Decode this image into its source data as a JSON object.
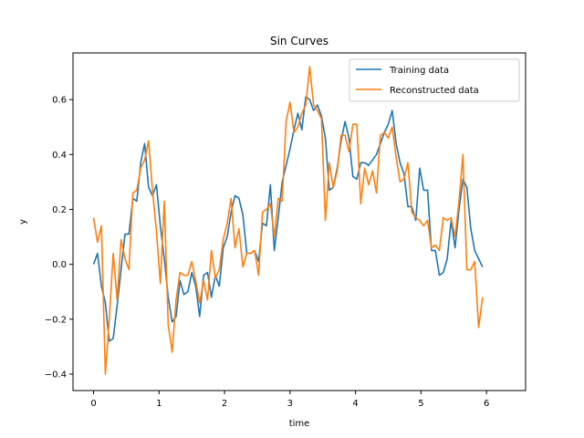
{
  "chart_data": {
    "type": "line",
    "title": "Sin Curves",
    "xlabel": "time",
    "ylabel": "y",
    "xlim": [
      -0.314,
      6.597
    ],
    "ylim": [
      -0.46,
      0.77
    ],
    "xticks": [
      0,
      1,
      2,
      3,
      4,
      5,
      6
    ],
    "yticks": [
      -0.4,
      -0.2,
      0.0,
      0.2,
      0.4,
      0.6
    ],
    "xtick_labels": [
      "0",
      "1",
      "2",
      "3",
      "4",
      "5",
      "6"
    ],
    "ytick_labels": [
      "−0.4",
      "−0.2",
      "0.0",
      "0.2",
      "0.4",
      "0.6"
    ],
    "grid": false,
    "legend_position": "top-right",
    "series": [
      {
        "name": "Training data",
        "color": "#1f77b4",
        "points": [
          [
            0.0,
            0.0
          ],
          [
            0.06,
            0.04
          ],
          [
            0.12,
            -0.08
          ],
          [
            0.18,
            -0.14
          ],
          [
            0.24,
            -0.28
          ],
          [
            0.3,
            -0.27
          ],
          [
            0.36,
            -0.15
          ],
          [
            0.42,
            -0.02
          ],
          [
            0.48,
            0.11
          ],
          [
            0.54,
            0.11
          ],
          [
            0.6,
            0.24
          ],
          [
            0.66,
            0.23
          ],
          [
            0.72,
            0.37
          ],
          [
            0.78,
            0.44
          ],
          [
            0.84,
            0.28
          ],
          [
            0.9,
            0.25
          ],
          [
            0.96,
            0.29
          ],
          [
            1.02,
            0.14
          ],
          [
            1.08,
            0.02
          ],
          [
            1.14,
            -0.12
          ],
          [
            1.2,
            -0.21
          ],
          [
            1.26,
            -0.19
          ],
          [
            1.32,
            -0.06
          ],
          [
            1.38,
            -0.11
          ],
          [
            1.44,
            -0.1
          ],
          [
            1.5,
            -0.03
          ],
          [
            1.56,
            -0.08
          ],
          [
            1.62,
            -0.19
          ],
          [
            1.68,
            -0.04
          ],
          [
            1.74,
            -0.03
          ],
          [
            1.8,
            -0.12
          ],
          [
            1.86,
            -0.04
          ],
          [
            1.92,
            -0.08
          ],
          [
            1.98,
            0.06
          ],
          [
            2.04,
            0.1
          ],
          [
            2.1,
            0.19
          ],
          [
            2.16,
            0.25
          ],
          [
            2.22,
            0.24
          ],
          [
            2.28,
            0.18
          ],
          [
            2.34,
            0.04
          ],
          [
            2.4,
            0.04
          ],
          [
            2.46,
            0.05
          ],
          [
            2.52,
            0.01
          ],
          [
            2.58,
            0.15
          ],
          [
            2.64,
            0.14
          ],
          [
            2.7,
            0.29
          ],
          [
            2.76,
            0.05
          ],
          [
            2.82,
            0.17
          ],
          [
            2.88,
            0.3
          ],
          [
            2.94,
            0.36
          ],
          [
            3.0,
            0.42
          ],
          [
            3.06,
            0.49
          ],
          [
            3.12,
            0.55
          ],
          [
            3.18,
            0.49
          ],
          [
            3.24,
            0.61
          ],
          [
            3.3,
            0.6
          ],
          [
            3.36,
            0.56
          ],
          [
            3.42,
            0.58
          ],
          [
            3.48,
            0.54
          ],
          [
            3.54,
            0.46
          ],
          [
            3.6,
            0.27
          ],
          [
            3.66,
            0.28
          ],
          [
            3.72,
            0.35
          ],
          [
            3.78,
            0.45
          ],
          [
            3.84,
            0.52
          ],
          [
            3.9,
            0.46
          ],
          [
            3.96,
            0.32
          ],
          [
            4.02,
            0.31
          ],
          [
            4.08,
            0.37
          ],
          [
            4.14,
            0.37
          ],
          [
            4.2,
            0.36
          ],
          [
            4.26,
            0.38
          ],
          [
            4.32,
            0.4
          ],
          [
            4.38,
            0.44
          ],
          [
            4.44,
            0.48
          ],
          [
            4.5,
            0.51
          ],
          [
            4.56,
            0.56
          ],
          [
            4.62,
            0.44
          ],
          [
            4.68,
            0.37
          ],
          [
            4.74,
            0.33
          ],
          [
            4.8,
            0.21
          ],
          [
            4.86,
            0.21
          ],
          [
            4.92,
            0.16
          ],
          [
            4.98,
            0.35
          ],
          [
            5.04,
            0.27
          ],
          [
            5.1,
            0.27
          ],
          [
            5.16,
            0.05
          ],
          [
            5.22,
            0.05
          ],
          [
            5.28,
            -0.04
          ],
          [
            5.34,
            -0.03
          ],
          [
            5.4,
            0.02
          ],
          [
            5.46,
            0.16
          ],
          [
            5.52,
            0.06
          ],
          [
            5.58,
            0.2
          ],
          [
            5.64,
            0.31
          ],
          [
            5.7,
            0.28
          ],
          [
            5.76,
            0.13
          ],
          [
            5.82,
            0.05
          ],
          [
            5.88,
            0.02
          ],
          [
            5.94,
            -0.01
          ]
        ]
      },
      {
        "name": "Reconstructed data",
        "color": "#ff7f0e",
        "points": [
          [
            0.0,
            0.17
          ],
          [
            0.06,
            0.08
          ],
          [
            0.12,
            0.14
          ],
          [
            0.18,
            -0.4
          ],
          [
            0.24,
            -0.2
          ],
          [
            0.3,
            0.04
          ],
          [
            0.36,
            -0.13
          ],
          [
            0.42,
            0.09
          ],
          [
            0.48,
            0.02
          ],
          [
            0.54,
            -0.02
          ],
          [
            0.6,
            0.26
          ],
          [
            0.66,
            0.27
          ],
          [
            0.72,
            0.35
          ],
          [
            0.78,
            0.38
          ],
          [
            0.84,
            0.45
          ],
          [
            0.9,
            0.27
          ],
          [
            0.96,
            0.12
          ],
          [
            1.02,
            -0.07
          ],
          [
            1.08,
            0.23
          ],
          [
            1.14,
            -0.22
          ],
          [
            1.2,
            -0.32
          ],
          [
            1.26,
            -0.13
          ],
          [
            1.32,
            -0.03
          ],
          [
            1.38,
            -0.04
          ],
          [
            1.44,
            -0.04
          ],
          [
            1.5,
            0.01
          ],
          [
            1.56,
            -0.06
          ],
          [
            1.62,
            -0.14
          ],
          [
            1.68,
            -0.06
          ],
          [
            1.74,
            -0.13
          ],
          [
            1.8,
            0.05
          ],
          [
            1.86,
            -0.05
          ],
          [
            1.92,
            -0.02
          ],
          [
            1.98,
            0.09
          ],
          [
            2.04,
            0.15
          ],
          [
            2.1,
            0.24
          ],
          [
            2.16,
            0.06
          ],
          [
            2.22,
            0.13
          ],
          [
            2.28,
            -0.01
          ],
          [
            2.34,
            0.04
          ],
          [
            2.4,
            0.04
          ],
          [
            2.46,
            0.05
          ],
          [
            2.52,
            -0.04
          ],
          [
            2.58,
            0.19
          ],
          [
            2.64,
            0.2
          ],
          [
            2.7,
            0.22
          ],
          [
            2.76,
            0.1
          ],
          [
            2.82,
            0.24
          ],
          [
            2.88,
            0.23
          ],
          [
            2.94,
            0.52
          ],
          [
            3.0,
            0.59
          ],
          [
            3.06,
            0.48
          ],
          [
            3.12,
            0.5
          ],
          [
            3.18,
            0.55
          ],
          [
            3.24,
            0.58
          ],
          [
            3.3,
            0.72
          ],
          [
            3.36,
            0.58
          ],
          [
            3.42,
            0.56
          ],
          [
            3.48,
            0.53
          ],
          [
            3.54,
            0.16
          ],
          [
            3.6,
            0.37
          ],
          [
            3.66,
            0.28
          ],
          [
            3.72,
            0.34
          ],
          [
            3.78,
            0.47
          ],
          [
            3.84,
            0.47
          ],
          [
            3.9,
            0.41
          ],
          [
            3.96,
            0.51
          ],
          [
            4.02,
            0.51
          ],
          [
            4.08,
            0.22
          ],
          [
            4.14,
            0.35
          ],
          [
            4.2,
            0.29
          ],
          [
            4.26,
            0.34
          ],
          [
            4.32,
            0.26
          ],
          [
            4.38,
            0.47
          ],
          [
            4.44,
            0.48
          ],
          [
            4.5,
            0.46
          ],
          [
            4.56,
            0.5
          ],
          [
            4.62,
            0.39
          ],
          [
            4.68,
            0.3
          ],
          [
            4.74,
            0.31
          ],
          [
            4.8,
            0.37
          ],
          [
            4.86,
            0.19
          ],
          [
            4.92,
            0.17
          ],
          [
            4.98,
            0.16
          ],
          [
            5.04,
            0.14
          ],
          [
            5.1,
            0.16
          ],
          [
            5.16,
            0.06
          ],
          [
            5.22,
            0.07
          ],
          [
            5.28,
            0.05
          ],
          [
            5.34,
            0.17
          ],
          [
            5.4,
            0.16
          ],
          [
            5.46,
            0.17
          ],
          [
            5.52,
            0.1
          ],
          [
            5.58,
            0.23
          ],
          [
            5.64,
            0.4
          ],
          [
            5.7,
            -0.02
          ],
          [
            5.76,
            -0.02
          ],
          [
            5.82,
            0.01
          ],
          [
            5.88,
            -0.23
          ],
          [
            5.94,
            -0.12
          ]
        ]
      }
    ]
  }
}
